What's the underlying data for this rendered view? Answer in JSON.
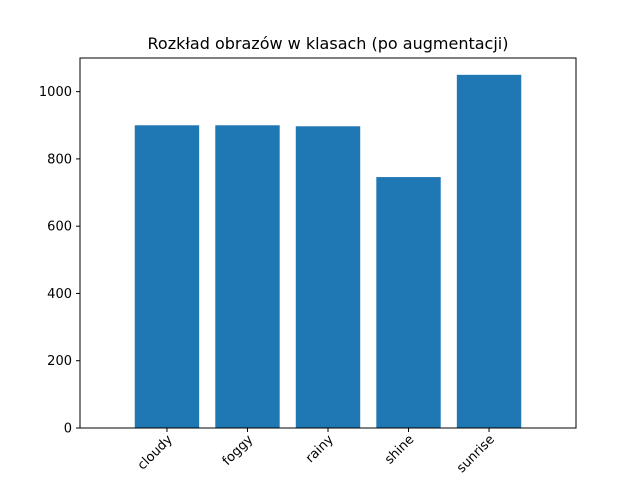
{
  "chart_data": {
    "type": "bar",
    "title": "Rozkład obrazów w klasach (po augmentacji)",
    "xlabel": "",
    "ylabel": "",
    "categories": [
      "cloudy",
      "foggy",
      "rainy",
      "shine",
      "sunrise"
    ],
    "values": [
      900,
      900,
      897,
      746,
      1050
    ],
    "ylim": [
      0,
      1100
    ],
    "yticks": [
      0,
      200,
      400,
      600,
      800,
      1000
    ],
    "grid": false,
    "bar_color": "#1f77b4",
    "xtick_rotation": 45
  }
}
